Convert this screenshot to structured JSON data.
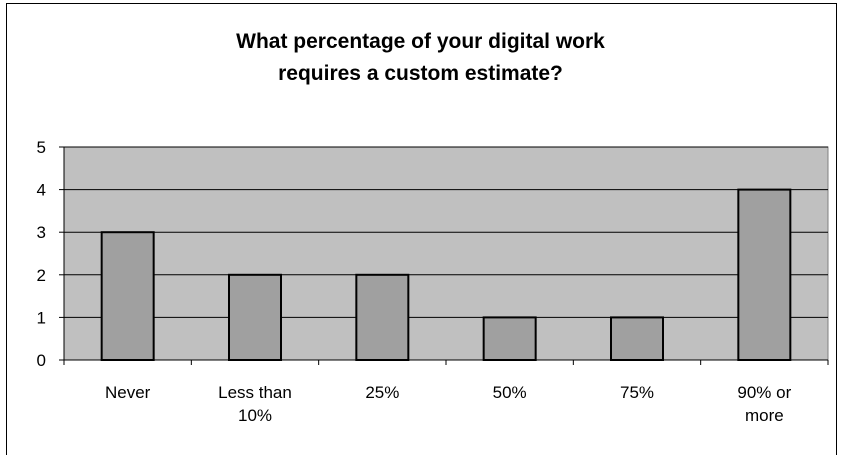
{
  "chart_data": {
    "type": "bar",
    "title_lines": [
      "What percentage of your digital work",
      "requires a custom estimate?"
    ],
    "categories": [
      [
        "Never"
      ],
      [
        "Less than",
        "10%"
      ],
      [
        "25%"
      ],
      [
        "50%"
      ],
      [
        "75%"
      ],
      [
        "90% or",
        "more"
      ]
    ],
    "values": [
      3,
      2,
      2,
      1,
      1,
      4
    ],
    "ylim": [
      0,
      5
    ],
    "yticks": [
      0,
      1,
      2,
      3,
      4,
      5
    ],
    "grid": true,
    "colors": {
      "plot_bg": "#c0c0c0",
      "bar": "#a0a0a0",
      "bar_stroke": "#000000",
      "grid": "#000000"
    }
  }
}
